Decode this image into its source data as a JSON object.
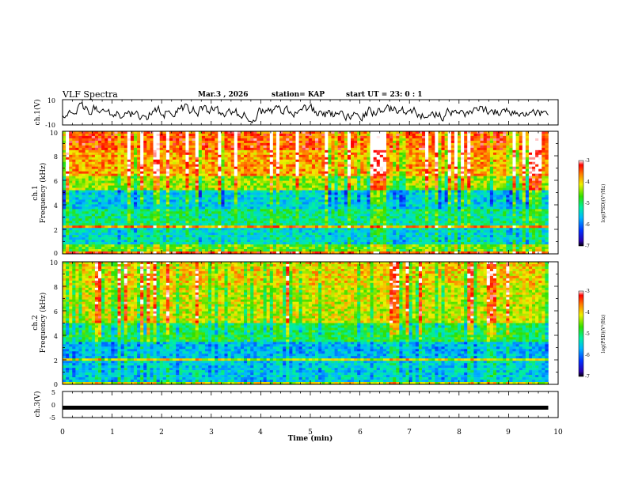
{
  "header": {
    "title": "VLF Spectra",
    "date": "Mar.3  , 2026",
    "station": "station= KAP",
    "start": "start  UT  =   23: 0  : 1"
  },
  "chart_data": [
    {
      "type": "line",
      "name": "ch1-waveform",
      "ylabel": "ch.1(V)",
      "ylim": [
        -10,
        10
      ],
      "yticks": [
        "10",
        "-10"
      ],
      "xlim": [
        0,
        10
      ],
      "note": "noisy waveform oscillating roughly between -6 and +6 V over 0-9.8 min"
    },
    {
      "type": "heatmap",
      "name": "ch1-spectrogram",
      "ylabel_top": "ch.1",
      "ylabel": "Frequency  (kHz)",
      "ylim": [
        0,
        10
      ],
      "yticks": [
        "0",
        "2",
        "4",
        "6",
        "8",
        "10"
      ],
      "xlim": [
        0,
        10
      ],
      "data_extent_min": 9.8,
      "colorbar": {
        "label": "log(PSD)(V²/Hz)",
        "range": [
          -7,
          -3
        ],
        "ticks": [
          "-3",
          "-4",
          "-5",
          "-6",
          "-7"
        ]
      },
      "bands_khz": [
        {
          "from": 0.0,
          "to": 0.25,
          "level": -3.5
        },
        {
          "from": 0.25,
          "to": 0.8,
          "level": -4.6
        },
        {
          "from": 0.8,
          "to": 2.2,
          "level": -5.4
        },
        {
          "from": 2.2,
          "to": 2.35,
          "level": -3.7
        },
        {
          "from": 2.35,
          "to": 3.7,
          "level": -5.1
        },
        {
          "from": 3.7,
          "to": 5.2,
          "level": -5.5
        },
        {
          "from": 5.2,
          "to": 6.3,
          "level": -4.4
        },
        {
          "from": 6.3,
          "to": 8.5,
          "level": -3.8
        },
        {
          "from": 8.5,
          "to": 10.0,
          "level": -3.5
        }
      ]
    },
    {
      "type": "heatmap",
      "name": "ch2-spectrogram",
      "ylabel_top": "ch.2",
      "ylabel": "Frequency  (kHz)",
      "ylim": [
        0,
        10
      ],
      "yticks": [
        "0",
        "2",
        "4",
        "6",
        "8",
        "10"
      ],
      "xlim": [
        0,
        10
      ],
      "data_extent_min": 9.8,
      "colorbar": {
        "label": "log(PSD)(V²/Hz)",
        "range": [
          -7,
          -3
        ],
        "ticks": [
          "-3",
          "-4",
          "-5",
          "-6",
          "-7"
        ]
      },
      "bands_khz": [
        {
          "from": 0.0,
          "to": 0.25,
          "level": -4.2
        },
        {
          "from": 0.25,
          "to": 1.9,
          "level": -5.5
        },
        {
          "from": 1.9,
          "to": 2.05,
          "level": -4.2
        },
        {
          "from": 2.05,
          "to": 3.4,
          "level": -5.6
        },
        {
          "from": 3.4,
          "to": 5.0,
          "level": -4.9
        },
        {
          "from": 5.0,
          "to": 8.0,
          "level": -4.2
        },
        {
          "from": 8.0,
          "to": 10.0,
          "level": -4.0
        }
      ]
    },
    {
      "type": "line",
      "name": "ch3-signal",
      "ylabel": "ch.3(V)",
      "ylim": [
        -5,
        5
      ],
      "yticks": [
        "5",
        "0",
        "-5"
      ],
      "xlim": [
        0,
        10
      ],
      "value": -1.2,
      "xlabel": "Time  (min)",
      "xticks": [
        "0",
        "1",
        "2",
        "3",
        "4",
        "5",
        "6",
        "7",
        "8",
        "9",
        "10"
      ]
    }
  ]
}
